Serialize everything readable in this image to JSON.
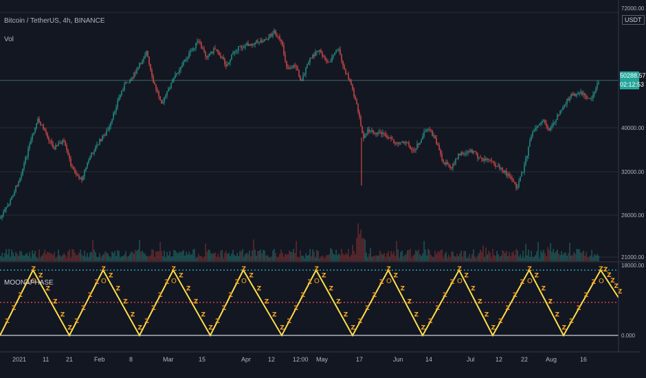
{
  "header": {
    "symbol_line": "Bitcoin / TetherUS, 4h, BINANCE",
    "volume_label": "Vol",
    "indicator_label": "MOONAPHASE"
  },
  "price_scale": {
    "currency": "USDT",
    "ticks": [
      "72000.00",
      "40000.00",
      "32000.00",
      "26000.00",
      "21000.00",
      "18000.00"
    ],
    "last_price": "50288.57",
    "countdown": "02:12:53"
  },
  "indicator_scale": {
    "ticks": [
      "0.000"
    ]
  },
  "time_axis": {
    "labels": [
      "2021",
      "11",
      "21",
      "Feb",
      "8",
      "Mar",
      "15",
      "Apr",
      "12",
      "12:00",
      "May",
      "17",
      "Jun",
      "14",
      "Jul",
      "12",
      "22",
      "Aug",
      "16"
    ]
  },
  "glyphs": {
    "full": "O",
    "half": "Z"
  },
  "colors": {
    "background": "#131722",
    "up": "#26a69a",
    "down": "#ef5350",
    "triangle": "#ffe04a",
    "glyph": "#f5a623",
    "cyan_level": "#26c6da",
    "red_level": "#ef5350"
  }
}
